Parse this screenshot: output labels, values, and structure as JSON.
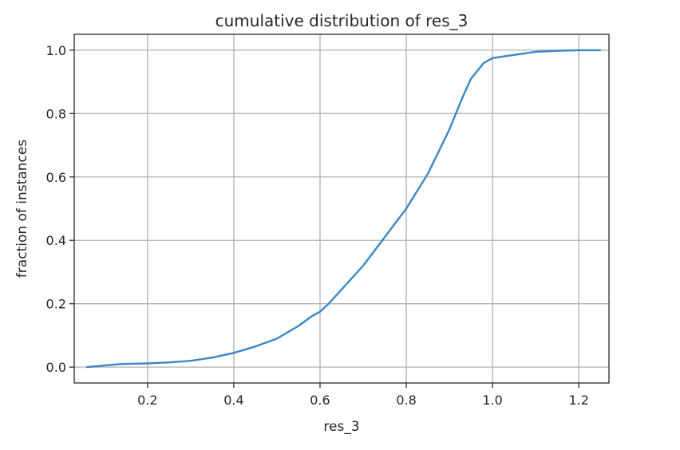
{
  "chart_data": {
    "type": "line",
    "title": "cumulative distribution of res_3",
    "xlabel": "res_3",
    "ylabel": "fraction of instances",
    "xlim": [
      0.03,
      1.27
    ],
    "ylim": [
      -0.05,
      1.05
    ],
    "xticks": [
      0.2,
      0.4,
      0.6,
      0.8,
      1.0,
      1.2
    ],
    "xtick_labels": [
      "0.2",
      "0.4",
      "0.6",
      "0.8",
      "1.0",
      "1.2"
    ],
    "yticks": [
      0.0,
      0.2,
      0.4,
      0.6,
      0.8,
      1.0
    ],
    "ytick_labels": [
      "0.0",
      "0.2",
      "0.4",
      "0.6",
      "0.8",
      "1.0"
    ],
    "grid": true,
    "series": [
      {
        "color": "#3a87c4",
        "x": [
          0.06,
          0.1,
          0.14,
          0.2,
          0.25,
          0.3,
          0.35,
          0.4,
          0.45,
          0.5,
          0.55,
          0.58,
          0.6,
          0.62,
          0.65,
          0.7,
          0.75,
          0.8,
          0.85,
          0.9,
          0.93,
          0.95,
          0.98,
          1.0,
          1.05,
          1.1,
          1.15,
          1.2,
          1.25
        ],
        "y": [
          0.0,
          0.005,
          0.01,
          0.012,
          0.015,
          0.02,
          0.03,
          0.045,
          0.065,
          0.09,
          0.13,
          0.16,
          0.175,
          0.2,
          0.245,
          0.32,
          0.41,
          0.5,
          0.61,
          0.75,
          0.85,
          0.91,
          0.96,
          0.975,
          0.985,
          0.995,
          0.998,
          1.0,
          1.0
        ]
      }
    ]
  }
}
